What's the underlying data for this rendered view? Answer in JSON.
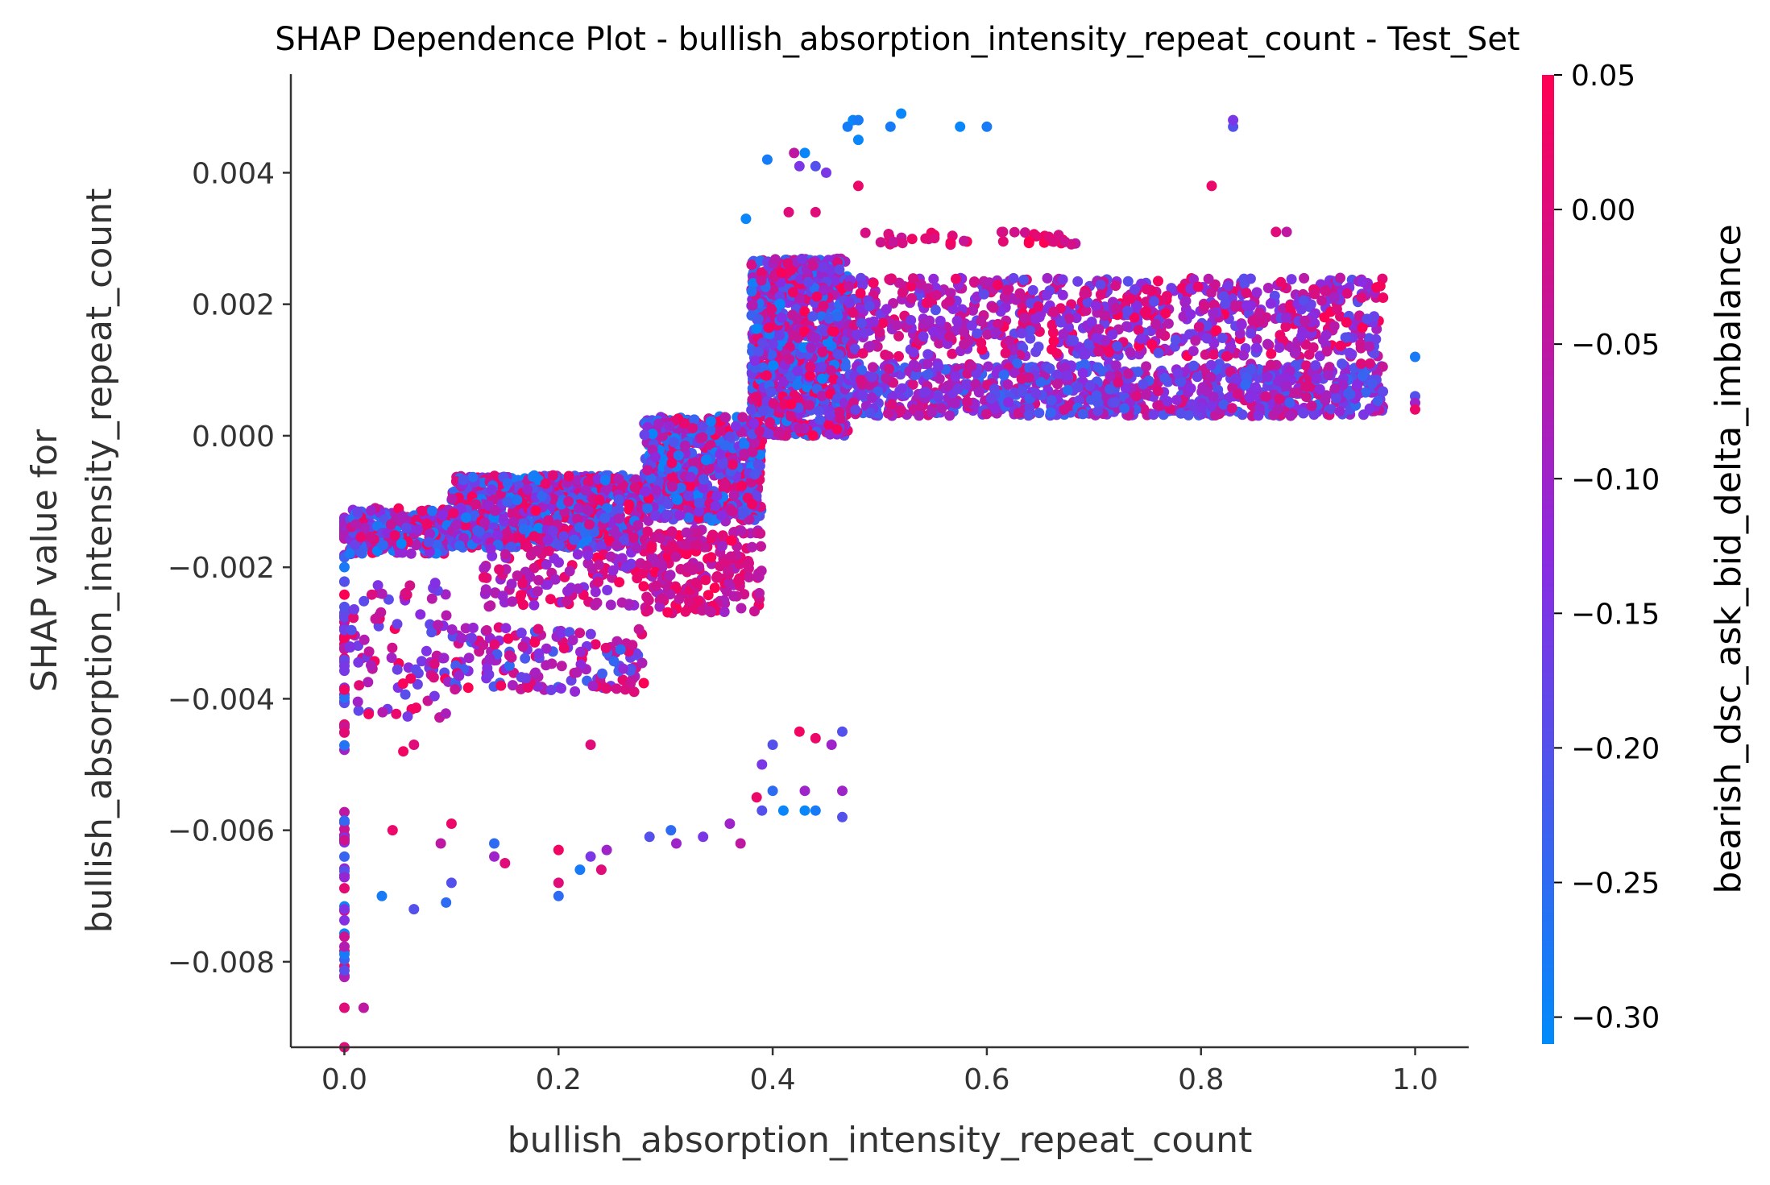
{
  "chart_data": {
    "type": "scatter",
    "title": "SHAP Dependence Plot - bullish_absorption_intensity_repeat_count - Test_Set",
    "xlabel": "bullish_absorption_intensity_repeat_count",
    "ylabel_line1": "SHAP value for",
    "ylabel_line2": "bullish_absorption_intensity_repeat_count",
    "xlim": [
      -0.05,
      1.05
    ],
    "ylim": [
      -0.0093,
      0.0055
    ],
    "x_ticks": [
      {
        "value": 0.0,
        "label": "0.0"
      },
      {
        "value": 0.2,
        "label": "0.2"
      },
      {
        "value": 0.4,
        "label": "0.4"
      },
      {
        "value": 0.6,
        "label": "0.6"
      },
      {
        "value": 0.8,
        "label": "0.8"
      },
      {
        "value": 1.0,
        "label": "1.0"
      }
    ],
    "y_ticks": [
      {
        "value": 0.004,
        "label": "0.004"
      },
      {
        "value": 0.002,
        "label": "0.002"
      },
      {
        "value": 0.0,
        "label": "0.000"
      },
      {
        "value": -0.002,
        "label": "−0.002"
      },
      {
        "value": -0.004,
        "label": "−0.004"
      },
      {
        "value": -0.006,
        "label": "−0.006"
      },
      {
        "value": -0.008,
        "label": "−0.008"
      }
    ],
    "grid": false,
    "colorbar": {
      "label": "bearish_dsc_ask_bid_delta_imbalance",
      "range": [
        -0.31,
        0.05
      ],
      "low_color": "#008bfb",
      "mid_color": "#8a2be2",
      "high_color": "#ff0052",
      "ticks": [
        {
          "value": 0.05,
          "label": "0.05"
        },
        {
          "value": 0.0,
          "label": "0.00"
        },
        {
          "value": -0.05,
          "label": "−0.05"
        },
        {
          "value": -0.1,
          "label": "−0.10"
        },
        {
          "value": -0.15,
          "label": "−0.15"
        },
        {
          "value": -0.2,
          "label": "−0.20"
        },
        {
          "value": -0.25,
          "label": "−0.25"
        },
        {
          "value": -0.3,
          "label": "−0.30"
        }
      ]
    },
    "point_clusters": [
      {
        "x": [
          0.0,
          0.0
        ],
        "y": [
          -0.0016,
          -0.0012
        ],
        "color": [
          -0.15,
          0.0
        ],
        "n": 30
      },
      {
        "x": [
          0.0,
          0.0
        ],
        "y": [
          -0.0048,
          -0.0018
        ],
        "color": [
          -0.31,
          0.05
        ],
        "n": 40
      },
      {
        "x": [
          0.0,
          0.0
        ],
        "y": [
          -0.0083,
          -0.0056
        ],
        "color": [
          -0.31,
          0.05
        ],
        "n": 30
      },
      {
        "x": [
          0.005,
          0.1
        ],
        "y": [
          -0.0018,
          -0.0011
        ],
        "color": [
          -0.3,
          0.05
        ],
        "n": 240
      },
      {
        "x": [
          0.005,
          0.1
        ],
        "y": [
          -0.0043,
          -0.0022
        ],
        "color": [
          -0.2,
          0.05
        ],
        "n": 90
      },
      {
        "x": [
          0.1,
          0.28
        ],
        "y": [
          -0.0017,
          -0.0006
        ],
        "color": [
          -0.3,
          0.05
        ],
        "n": 900
      },
      {
        "x": [
          0.13,
          0.28
        ],
        "y": [
          -0.0026,
          -0.0017
        ],
        "color": [
          -0.15,
          0.05
        ],
        "n": 120
      },
      {
        "x": [
          0.1,
          0.28
        ],
        "y": [
          -0.0039,
          -0.0029
        ],
        "color": [
          -0.25,
          0.05
        ],
        "n": 160
      },
      {
        "x": [
          0.28,
          0.39
        ],
        "y": [
          -0.0013,
          0.0003
        ],
        "color": [
          -0.3,
          0.05
        ],
        "n": 650
      },
      {
        "x": [
          0.28,
          0.39
        ],
        "y": [
          -0.0027,
          -0.0014
        ],
        "color": [
          -0.1,
          0.05
        ],
        "n": 220
      },
      {
        "x": [
          0.38,
          0.47
        ],
        "y": [
          0.0,
          0.0027
        ],
        "color": [
          -0.3,
          0.05
        ],
        "n": 1000
      },
      {
        "x": [
          0.47,
          0.97
        ],
        "y": [
          0.0012,
          0.0024
        ],
        "color": [
          -0.2,
          0.05
        ],
        "n": 800
      },
      {
        "x": [
          0.47,
          0.97
        ],
        "y": [
          0.0003,
          0.0011
        ],
        "color": [
          -0.25,
          0.0
        ],
        "n": 900
      },
      {
        "x": [
          0.48,
          0.69
        ],
        "y": [
          0.0029,
          0.0031
        ],
        "color": [
          -0.05,
          0.05
        ],
        "n": 40
      }
    ],
    "points": [
      {
        "x": 0.0,
        "y": -0.0093,
        "c": 0.0
      },
      {
        "x": 0.0,
        "y": -0.0087,
        "c": 0.0
      },
      {
        "x": 0.018,
        "y": -0.0087,
        "c": -0.05
      },
      {
        "x": 0.035,
        "y": -0.007,
        "c": -0.28
      },
      {
        "x": 0.045,
        "y": -0.006,
        "c": 0.02
      },
      {
        "x": 0.065,
        "y": -0.0072,
        "c": -0.2
      },
      {
        "x": 0.095,
        "y": -0.0071,
        "c": -0.25
      },
      {
        "x": 0.1,
        "y": -0.0068,
        "c": -0.2
      },
      {
        "x": 0.1,
        "y": -0.0059,
        "c": 0.02
      },
      {
        "x": 0.09,
        "y": -0.0062,
        "c": -0.05
      },
      {
        "x": 0.14,
        "y": -0.0062,
        "c": -0.25
      },
      {
        "x": 0.14,
        "y": -0.0064,
        "c": -0.1
      },
      {
        "x": 0.15,
        "y": -0.0065,
        "c": 0.0
      },
      {
        "x": 0.2,
        "y": -0.0063,
        "c": 0.03
      },
      {
        "x": 0.2,
        "y": -0.0068,
        "c": 0.0
      },
      {
        "x": 0.2,
        "y": -0.007,
        "c": -0.25
      },
      {
        "x": 0.22,
        "y": -0.0066,
        "c": -0.28
      },
      {
        "x": 0.23,
        "y": -0.0064,
        "c": -0.15
      },
      {
        "x": 0.24,
        "y": -0.0066,
        "c": 0.0
      },
      {
        "x": 0.245,
        "y": -0.0063,
        "c": -0.1
      },
      {
        "x": 0.285,
        "y": -0.0061,
        "c": -0.2
      },
      {
        "x": 0.305,
        "y": -0.006,
        "c": -0.25
      },
      {
        "x": 0.31,
        "y": -0.0062,
        "c": -0.1
      },
      {
        "x": 0.335,
        "y": -0.0061,
        "c": -0.15
      },
      {
        "x": 0.36,
        "y": -0.0059,
        "c": -0.1
      },
      {
        "x": 0.37,
        "y": -0.0062,
        "c": -0.05
      },
      {
        "x": 0.385,
        "y": -0.0055,
        "c": 0.02
      },
      {
        "x": 0.39,
        "y": -0.005,
        "c": -0.15
      },
      {
        "x": 0.39,
        "y": -0.0057,
        "c": -0.2
      },
      {
        "x": 0.4,
        "y": -0.0047,
        "c": -0.2
      },
      {
        "x": 0.4,
        "y": -0.0054,
        "c": -0.25
      },
      {
        "x": 0.41,
        "y": -0.0057,
        "c": -0.3
      },
      {
        "x": 0.425,
        "y": -0.0045,
        "c": 0.03
      },
      {
        "x": 0.43,
        "y": -0.0054,
        "c": -0.1
      },
      {
        "x": 0.43,
        "y": -0.0057,
        "c": -0.3
      },
      {
        "x": 0.44,
        "y": -0.0046,
        "c": 0.02
      },
      {
        "x": 0.44,
        "y": -0.0057,
        "c": -0.28
      },
      {
        "x": 0.455,
        "y": -0.0047,
        "c": -0.1
      },
      {
        "x": 0.465,
        "y": -0.0045,
        "c": -0.2
      },
      {
        "x": 0.465,
        "y": -0.0054,
        "c": -0.1
      },
      {
        "x": 0.465,
        "y": -0.0058,
        "c": -0.2
      },
      {
        "x": 0.23,
        "y": -0.0047,
        "c": 0.0
      },
      {
        "x": 0.055,
        "y": -0.0048,
        "c": 0.03
      },
      {
        "x": 0.065,
        "y": -0.0047,
        "c": 0.0
      },
      {
        "x": 0.375,
        "y": 0.0033,
        "c": -0.3
      },
      {
        "x": 0.395,
        "y": 0.0042,
        "c": -0.28
      },
      {
        "x": 0.42,
        "y": 0.0043,
        "c": -0.05
      },
      {
        "x": 0.425,
        "y": 0.0041,
        "c": -0.15
      },
      {
        "x": 0.43,
        "y": 0.0043,
        "c": -0.3
      },
      {
        "x": 0.44,
        "y": 0.0041,
        "c": -0.2
      },
      {
        "x": 0.44,
        "y": 0.0034,
        "c": 0.0
      },
      {
        "x": 0.415,
        "y": 0.0034,
        "c": 0.0
      },
      {
        "x": 0.45,
        "y": 0.004,
        "c": -0.15
      },
      {
        "x": 0.47,
        "y": 0.0047,
        "c": -0.28
      },
      {
        "x": 0.475,
        "y": 0.0048,
        "c": -0.3
      },
      {
        "x": 0.48,
        "y": 0.0048,
        "c": -0.28
      },
      {
        "x": 0.48,
        "y": 0.0045,
        "c": -0.3
      },
      {
        "x": 0.48,
        "y": 0.0038,
        "c": 0.02
      },
      {
        "x": 0.51,
        "y": 0.0047,
        "c": -0.28
      },
      {
        "x": 0.52,
        "y": 0.0049,
        "c": -0.3
      },
      {
        "x": 0.575,
        "y": 0.0047,
        "c": -0.3
      },
      {
        "x": 0.6,
        "y": 0.0047,
        "c": -0.28
      },
      {
        "x": 0.81,
        "y": 0.0038,
        "c": 0.02
      },
      {
        "x": 0.83,
        "y": 0.0047,
        "c": -0.2
      },
      {
        "x": 0.83,
        "y": 0.0048,
        "c": -0.15
      },
      {
        "x": 0.87,
        "y": 0.0031,
        "c": 0.0
      },
      {
        "x": 0.88,
        "y": 0.0031,
        "c": -0.05
      },
      {
        "x": 0.93,
        "y": 0.0024,
        "c": -0.05
      },
      {
        "x": 0.95,
        "y": 0.0021,
        "c": 0.0
      },
      {
        "x": 0.97,
        "y": 0.0021,
        "c": 0.03
      },
      {
        "x": 1.0,
        "y": 0.0012,
        "c": -0.28
      },
      {
        "x": 1.0,
        "y": 0.0006,
        "c": -0.2
      },
      {
        "x": 1.0,
        "y": 0.0005,
        "c": -0.1
      },
      {
        "x": 1.0,
        "y": 0.0004,
        "c": 0.02
      }
    ]
  }
}
